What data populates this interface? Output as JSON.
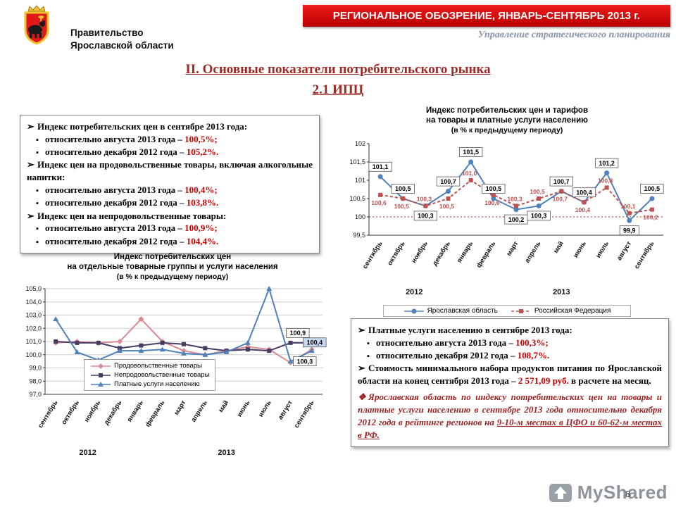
{
  "page_number": "8",
  "header": {
    "org_line1": "Правительство",
    "org_line2": "Ярославской области",
    "banner": "РЕГИОНАЛЬНОЕ ОБОЗРЕНИЕ, ЯНВАРЬ-СЕНТЯБРЬ 2013 г.",
    "subtitle": "Управление стратегического планирования"
  },
  "title": {
    "line1": "II. Основные показатели потребительского рынка",
    "line2": "2.1 ИПЦ"
  },
  "bullets": {
    "arrow": "➢",
    "sub": "▪",
    "diamond": "❖"
  },
  "box1": {
    "items": [
      {
        "level": "arrow",
        "text": "Индекс потребительских цен в сентябре 2013 года:"
      },
      {
        "level": "sub",
        "text": "относительно августа 2013 года – ",
        "value": "100,5%;"
      },
      {
        "level": "sub",
        "text": "относительно декабря 2012 года – ",
        "value": "105,2%."
      },
      {
        "level": "arrow",
        "text": "Индекс цен на продовольственные товары, включая алкогольные напитки:"
      },
      {
        "level": "sub",
        "text": "относительно августа 2013 года – ",
        "value": "100,4%;"
      },
      {
        "level": "sub",
        "text": "относительно декабря 2012 года – ",
        "value": "103,8%."
      },
      {
        "level": "arrow",
        "text": "Индекс цен на непродовольственные товары:"
      },
      {
        "level": "sub",
        "text": "относительно августа 2013 года – ",
        "value": "100,9%;"
      },
      {
        "level": "sub",
        "text": "относительно декабря 2012 года – ",
        "value": "104,4%."
      }
    ]
  },
  "box2": {
    "items": [
      {
        "level": "arrow",
        "text": "Платные услуги населению в сентябре 2013 года:"
      },
      {
        "level": "sub",
        "text": "относительно августа 2013 года – ",
        "value": "100,3%;"
      },
      {
        "level": "sub",
        "text": "относительно декабря 2012 года – ",
        "value": "108,7%."
      },
      {
        "level": "arrow",
        "text": "Стоимость минимального набора продуктов питания по Ярославской области на конец сентября 2013 года – ",
        "value": "2 571,09 руб.",
        "tail": " в расчете на месяц."
      },
      {
        "level": "diamond",
        "highlight": true,
        "text": "Ярославская область по индексу потребительских цен на товары и платные услуги населению в сентябре 2013 года относительно декабря 2012 года в рейтинге регионов на ",
        "underline": "9-10-м местах в ЦФО и 60-62-м местах в РФ."
      }
    ]
  },
  "chart_data": [
    {
      "type": "line",
      "title": [
        "Индекс потребительских цен и тарифов",
        "на товары и платные услуги населению",
        "(в % к предыдущему периоду)"
      ],
      "categories": [
        "сентябрь",
        "октябрь",
        "ноябрь",
        "декабрь",
        "январь",
        "февраль",
        "март",
        "апрель",
        "май",
        "июнь",
        "июль",
        "август",
        "сентябрь"
      ],
      "year_labels": [
        {
          "label": "2012",
          "span": [
            0,
            3
          ]
        },
        {
          "label": "2013",
          "span": [
            4,
            12
          ]
        }
      ],
      "ylim": [
        99.5,
        102
      ],
      "baseline": 100,
      "grid": false,
      "legend_position": "bottom",
      "yticks": [
        {
          "v": 99.5,
          "t": "99,5"
        },
        {
          "v": 100,
          "t": "100"
        },
        {
          "v": 100.5,
          "t": "100,5"
        },
        {
          "v": 101,
          "t": "101"
        },
        {
          "v": 101.5,
          "t": "101,5"
        },
        {
          "v": 102,
          "t": "102"
        }
      ],
      "series": [
        {
          "name": "Ярославская область",
          "color": "#4f81bd",
          "marker": "circle",
          "dash": null,
          "values": [
            101.1,
            100.5,
            100.3,
            100.7,
            101.5,
            100.5,
            100.2,
            100.3,
            100.7,
            100.4,
            101.2,
            99.9,
            100.5
          ],
          "labels": [
            "101,1",
            "100,5",
            "100,3",
            "100,7",
            "101,5",
            "100,5",
            "100,2",
            "100,3",
            "100,7",
            "100,4",
            "101,2",
            "99,9",
            "100,5"
          ],
          "label_style": "boxed"
        },
        {
          "name": "Российская Федерация",
          "color": "#c0504d",
          "marker": "square",
          "dash": "4,3",
          "values": [
            100.6,
            100.5,
            100.3,
            100.5,
            101.0,
            100.6,
            100.3,
            100.5,
            100.7,
            100.4,
            100.8,
            100.1,
            100.2
          ],
          "labels": [
            "100,6",
            "100,5",
            "100,3",
            "100,5",
            "101,0",
            "100,6",
            "100,3",
            "100,5",
            "100,7",
            "100,4",
            "100,8",
            "100,1",
            "100,2"
          ],
          "label_style": "plain"
        }
      ]
    },
    {
      "type": "line",
      "title": [
        "Индекс потребительских цен",
        "на отдельные товарные группы и услуги населения",
        "(в % к предыдущему периоду)"
      ],
      "categories": [
        "сентябрь",
        "октябрь",
        "ноябрь",
        "декабрь",
        "январь",
        "февраль",
        "март",
        "апрель",
        "май",
        "июнь",
        "июль",
        "август",
        "сентябрь"
      ],
      "year_labels": [
        {
          "label": "2012",
          "span": [
            0,
            3
          ]
        },
        {
          "label": "2013",
          "span": [
            4,
            12
          ]
        }
      ],
      "ylim": [
        97,
        105
      ],
      "baseline": null,
      "grid": true,
      "legend_position": "inside",
      "yticks": [
        {
          "v": 97,
          "t": "97,0"
        },
        {
          "v": 98,
          "t": "98,0"
        },
        {
          "v": 99,
          "t": "99,0"
        },
        {
          "v": 100,
          "t": "100,0"
        },
        {
          "v": 101,
          "t": "101,0"
        },
        {
          "v": 102,
          "t": "102,0"
        },
        {
          "v": 103,
          "t": "103,0"
        },
        {
          "v": 104,
          "t": "104,0"
        },
        {
          "v": 105,
          "t": "105,0"
        }
      ],
      "series": [
        {
          "name": "Продовольственные товары",
          "color": "#d98c94",
          "marker": "diamond",
          "dash": null,
          "values": [
            100.9,
            101.0,
            100.9,
            101.0,
            102.7,
            101.0,
            100.3,
            100.0,
            100.3,
            100.6,
            100.4,
            99.4,
            100.4
          ],
          "end_label": "100,4",
          "end_label_fill": "#c6d9f0"
        },
        {
          "name": "Непродовольственные товары",
          "color": "#4a3b63",
          "marker": "square",
          "dash": null,
          "values": [
            101.0,
            100.9,
            100.9,
            100.5,
            100.7,
            100.9,
            100.8,
            100.5,
            100.3,
            100.4,
            100.3,
            100.9,
            100.9
          ],
          "end_label": "100,9"
        },
        {
          "name": "Платные услуги населению",
          "color": "#4f81bd",
          "marker": "triangle",
          "dash": null,
          "values": [
            102.7,
            100.2,
            99.6,
            100.3,
            100.3,
            100.4,
            100.1,
            100.0,
            100.2,
            100.9,
            105.0,
            99.5,
            100.3
          ],
          "end_label": "100,3"
        }
      ]
    }
  ],
  "watermark": {
    "text": "MyShared"
  }
}
